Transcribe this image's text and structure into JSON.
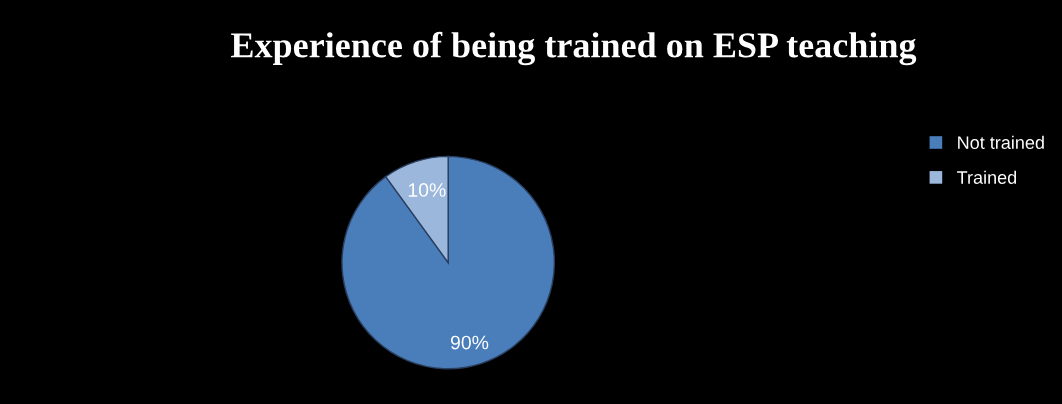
{
  "chart_data": {
    "type": "pie",
    "title": "Experience of being trained on ESP teaching",
    "categories": [
      "Not trained",
      "Trained"
    ],
    "values": [
      90,
      10
    ],
    "colors": [
      "#4a7ebb",
      "#9bb7dc"
    ],
    "value_labels": [
      "90%",
      "10%"
    ],
    "legend": "right"
  }
}
